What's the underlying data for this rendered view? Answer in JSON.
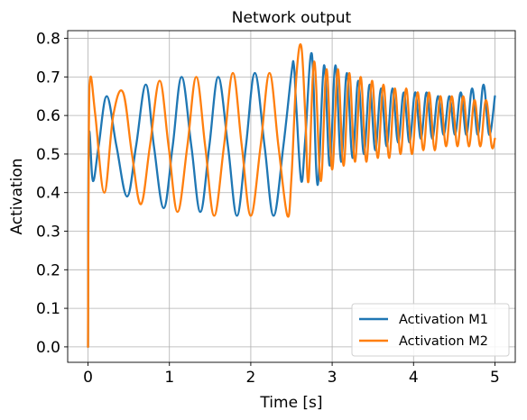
{
  "chart_data": {
    "type": "line",
    "title": "Network output",
    "xlabel": "Time [s]",
    "ylabel": "Activation",
    "xlim": [
      -0.25,
      5.25
    ],
    "ylim": [
      -0.04,
      0.82
    ],
    "xticks": [
      0,
      1,
      2,
      3,
      4,
      5
    ],
    "yticks": [
      0.0,
      0.1,
      0.2,
      0.3,
      0.4,
      0.5,
      0.6,
      0.7,
      0.8
    ],
    "xtick_labels": [
      "0",
      "1",
      "2",
      "3",
      "4",
      "5"
    ],
    "ytick_labels": [
      "0.0",
      "0.1",
      "0.2",
      "0.3",
      "0.4",
      "0.5",
      "0.6",
      "0.7",
      "0.8"
    ],
    "grid": true,
    "legend_position": "lower-right",
    "series": [
      {
        "name": "Activation M1",
        "color": "#1f77b4",
        "x": [
          0.0,
          0.01,
          0.06,
          0.13,
          0.23,
          0.35,
          0.48,
          0.59,
          0.71,
          0.81,
          0.93,
          1.04,
          1.15,
          1.27,
          1.38,
          1.49,
          1.6,
          1.72,
          1.83,
          1.94,
          2.05,
          2.17,
          2.28,
          2.4,
          2.5,
          2.53,
          2.56,
          2.62,
          2.67,
          2.75,
          2.82,
          2.9,
          2.97,
          3.04,
          3.11,
          3.18,
          3.25,
          3.32,
          3.39,
          3.46,
          3.53,
          3.6,
          3.67,
          3.74,
          3.81,
          3.88,
          3.95,
          4.02,
          4.09,
          4.16,
          4.23,
          4.3,
          4.37,
          4.44,
          4.51,
          4.58,
          4.65,
          4.72,
          4.79,
          4.86,
          4.93,
          5.0
        ],
        "y": [
          0.0,
          0.54,
          0.43,
          0.52,
          0.65,
          0.52,
          0.39,
          0.52,
          0.68,
          0.52,
          0.36,
          0.52,
          0.7,
          0.52,
          0.35,
          0.52,
          0.7,
          0.52,
          0.34,
          0.52,
          0.71,
          0.52,
          0.34,
          0.52,
          0.71,
          0.73,
          0.62,
          0.43,
          0.54,
          0.76,
          0.42,
          0.73,
          0.47,
          0.73,
          0.48,
          0.71,
          0.49,
          0.69,
          0.5,
          0.68,
          0.51,
          0.67,
          0.52,
          0.67,
          0.53,
          0.66,
          0.53,
          0.66,
          0.54,
          0.66,
          0.54,
          0.65,
          0.55,
          0.65,
          0.55,
          0.66,
          0.55,
          0.67,
          0.55,
          0.68,
          0.55,
          0.65
        ]
      },
      {
        "name": "Activation M2",
        "color": "#ff7f0e",
        "x": [
          0.0,
          0.01,
          0.03,
          0.09,
          0.2,
          0.31,
          0.43,
          0.54,
          0.65,
          0.76,
          0.88,
          0.99,
          1.1,
          1.22,
          1.33,
          1.44,
          1.55,
          1.67,
          1.78,
          1.89,
          2.0,
          2.12,
          2.23,
          2.34,
          2.45,
          2.5,
          2.56,
          2.62,
          2.67,
          2.71,
          2.78,
          2.86,
          2.93,
          3.0,
          3.07,
          3.14,
          3.21,
          3.28,
          3.35,
          3.42,
          3.49,
          3.56,
          3.63,
          3.7,
          3.77,
          3.84,
          3.91,
          3.98,
          4.05,
          4.12,
          4.19,
          4.26,
          4.33,
          4.4,
          4.47,
          4.54,
          4.61,
          4.68,
          4.75,
          4.82,
          4.89,
          4.96,
          5.0
        ],
        "y": [
          0.0,
          0.55,
          0.7,
          0.6,
          0.4,
          0.6,
          0.66,
          0.5,
          0.37,
          0.52,
          0.69,
          0.52,
          0.35,
          0.52,
          0.7,
          0.52,
          0.34,
          0.52,
          0.71,
          0.52,
          0.34,
          0.52,
          0.71,
          0.52,
          0.34,
          0.44,
          0.7,
          0.78,
          0.6,
          0.43,
          0.74,
          0.43,
          0.72,
          0.46,
          0.72,
          0.47,
          0.71,
          0.48,
          0.7,
          0.48,
          0.69,
          0.49,
          0.68,
          0.49,
          0.67,
          0.5,
          0.67,
          0.5,
          0.66,
          0.51,
          0.66,
          0.51,
          0.65,
          0.52,
          0.65,
          0.52,
          0.65,
          0.52,
          0.64,
          0.52,
          0.64,
          0.52,
          0.54
        ]
      }
    ]
  }
}
